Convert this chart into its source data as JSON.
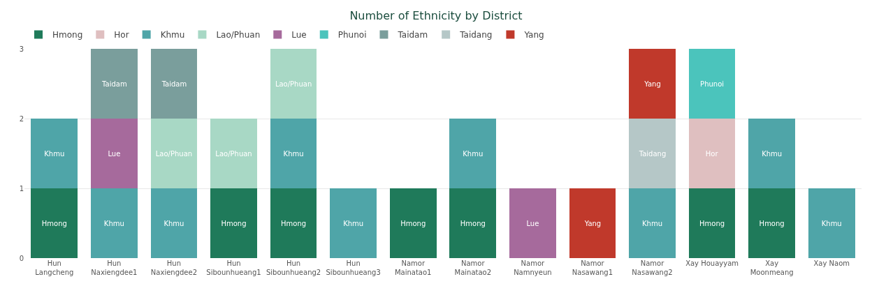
{
  "chart_data": {
    "type": "bar",
    "title": "Number of Ethnicity by District",
    "stacked": true,
    "categories": [
      "Hun Langcheng",
      "Hun Naxiengdee1",
      "Hun Naxiengdee2",
      "Hun Sibounhueang1",
      "Hun Sibounhueang2",
      "Hun Sibounhueang3",
      "Namor Mainatao1",
      "Namor Mainatao2",
      "Namor Namnyeun",
      "Namor Nasawang1",
      "Namor Nasawang2",
      "Xay Houayyam",
      "Xay Moonmeang",
      "Xay Naom"
    ],
    "series": [
      {
        "name": "Hmong",
        "color": "#1f7a5a",
        "values": [
          1,
          null,
          null,
          1,
          1,
          null,
          1,
          1,
          null,
          null,
          null,
          1,
          1,
          null
        ]
      },
      {
        "name": "Hor",
        "color": "#dfbfc0",
        "values": [
          null,
          null,
          null,
          null,
          null,
          null,
          null,
          null,
          null,
          null,
          null,
          1,
          null,
          null
        ]
      },
      {
        "name": "Khmu",
        "color": "#4fa5a8",
        "values": [
          1,
          1,
          1,
          null,
          1,
          1,
          null,
          1,
          null,
          null,
          1,
          null,
          1,
          1
        ]
      },
      {
        "name": "Lao/Phuan",
        "color": "#a8d8c5",
        "values": [
          null,
          null,
          1,
          1,
          1,
          null,
          null,
          null,
          null,
          null,
          null,
          null,
          null,
          null
        ]
      },
      {
        "name": "Lue",
        "color": "#a66a9c",
        "values": [
          null,
          1,
          null,
          null,
          null,
          null,
          null,
          null,
          1,
          null,
          null,
          null,
          null,
          null
        ]
      },
      {
        "name": "Phunoi",
        "color": "#4bc4bc",
        "values": [
          null,
          null,
          null,
          null,
          null,
          null,
          null,
          null,
          null,
          null,
          null,
          1,
          null,
          null
        ]
      },
      {
        "name": "Taidam",
        "color": "#7a9e9c",
        "values": [
          null,
          1,
          1,
          null,
          null,
          null,
          null,
          null,
          null,
          null,
          null,
          null,
          null,
          null
        ]
      },
      {
        "name": "Taidang",
        "color": "#b5c7c7",
        "values": [
          null,
          null,
          null,
          null,
          null,
          null,
          null,
          null,
          null,
          null,
          1,
          null,
          null,
          null
        ]
      },
      {
        "name": "Yang",
        "color": "#c0392b",
        "values": [
          null,
          null,
          null,
          null,
          null,
          null,
          null,
          null,
          null,
          1,
          1,
          null,
          null,
          null
        ]
      }
    ],
    "ylim": [
      0,
      3
    ],
    "yticks": [
      0,
      1,
      2,
      3
    ],
    "grid": "y",
    "legend": "top left"
  }
}
